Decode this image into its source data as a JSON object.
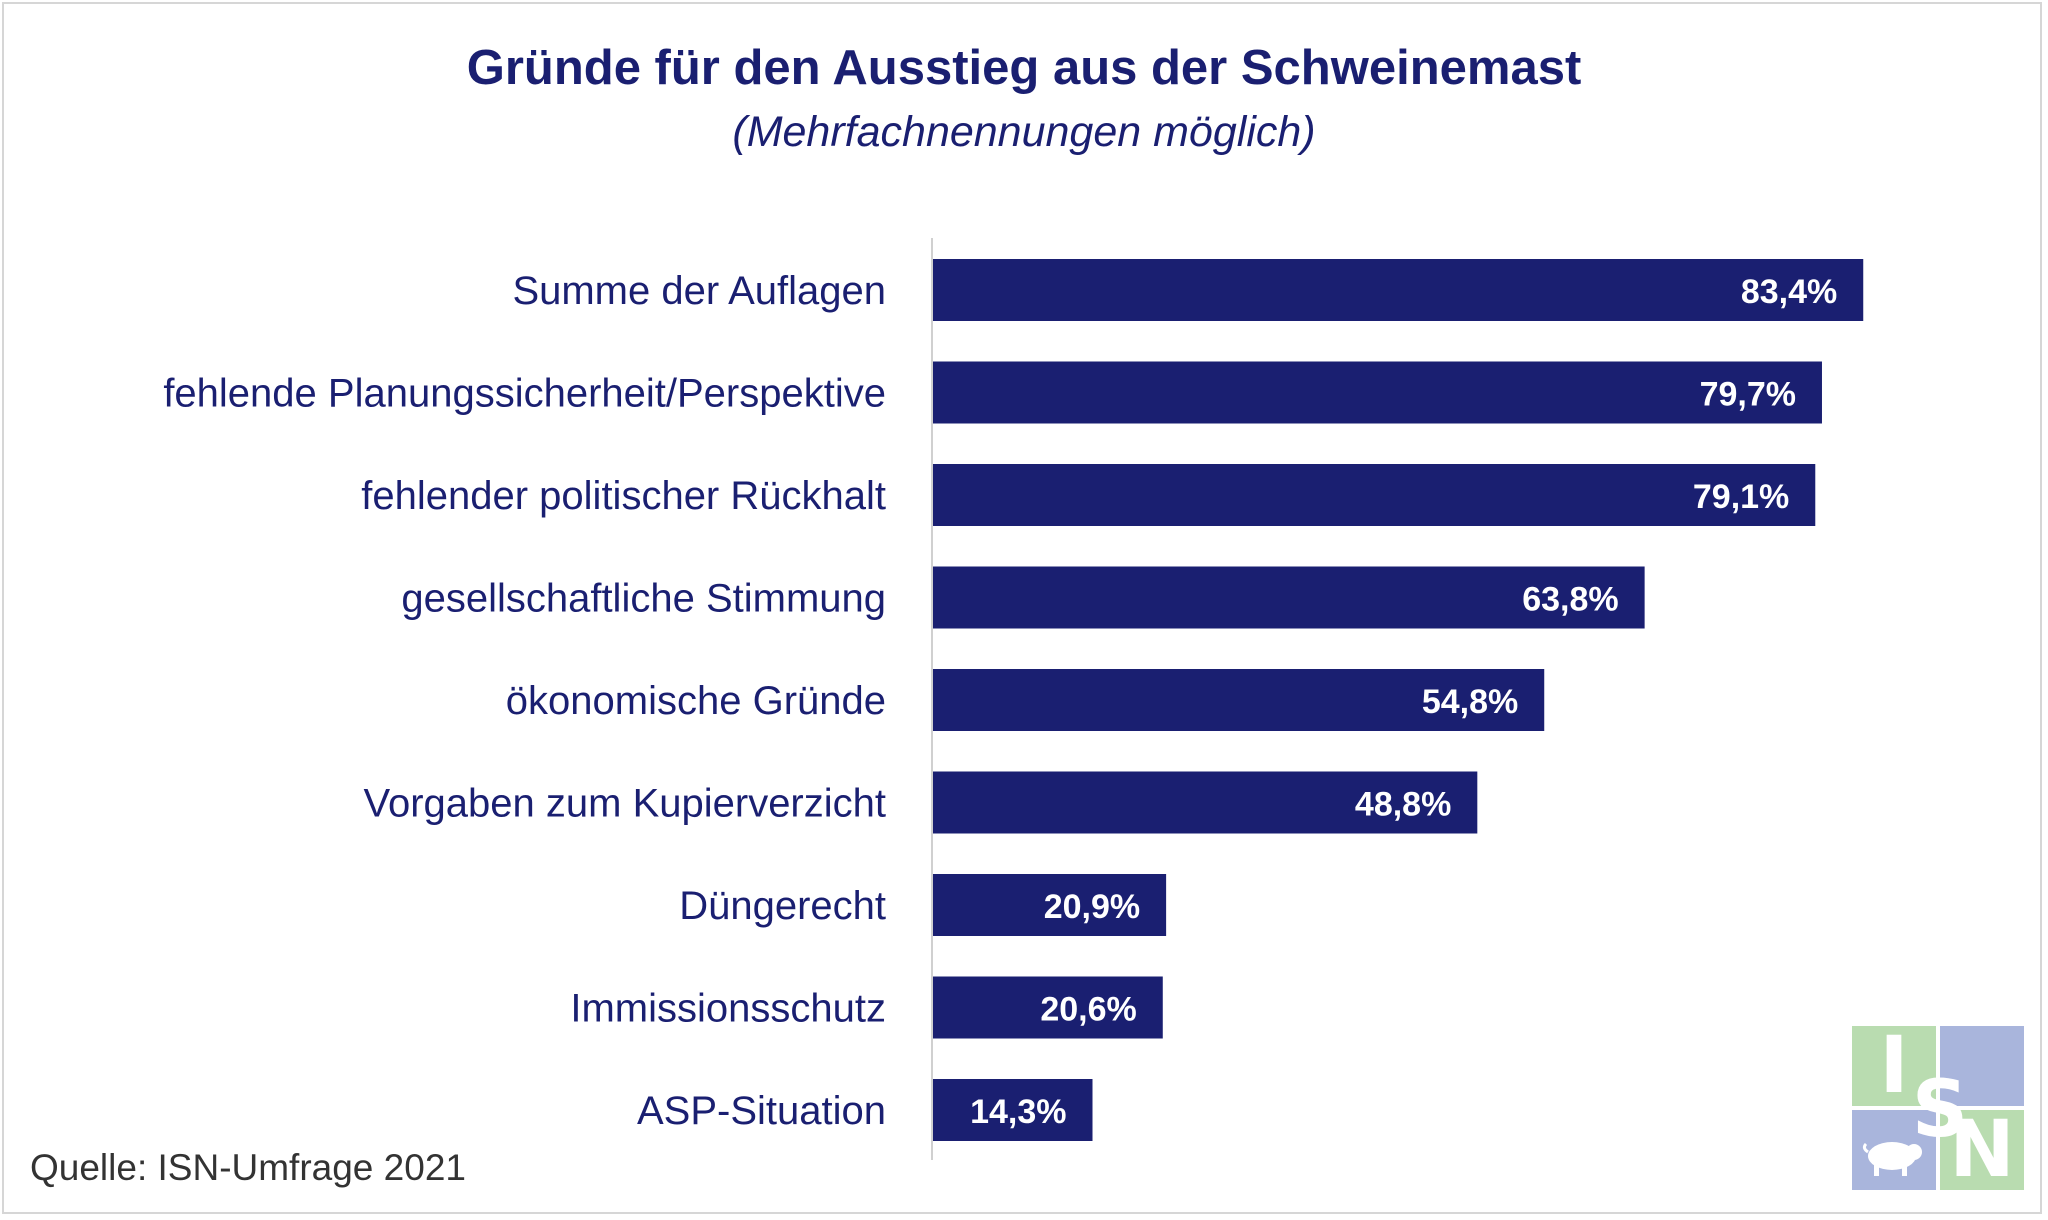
{
  "chart_data": {
    "type": "bar",
    "orientation": "horizontal",
    "title": "Gründe für den Ausstieg aus der Schweinemast",
    "subtitle": "(Mehrfachnennungen möglich)",
    "categories": [
      "Summe der Auflagen",
      "fehlende Planungssicherheit/Perspektive",
      "fehlender politischer Rückhalt",
      "gesellschaftliche Stimmung",
      "ökonomische Gründe",
      "Vorgaben zum Kupierverzicht",
      "Düngerecht",
      "Immissionsschutz",
      "ASP-Situation"
    ],
    "values": [
      83.4,
      79.7,
      79.1,
      63.8,
      54.8,
      48.8,
      20.9,
      20.6,
      14.3
    ],
    "value_labels": [
      "83,4%",
      "79,7%",
      "79,1%",
      "63,8%",
      "54,8%",
      "48,8%",
      "20,9%",
      "20,6%",
      "14,3%"
    ],
    "unit": "%",
    "grid": false,
    "bar_color": "#1a1f71",
    "text_color": "#1a1f71"
  },
  "source": "Quelle: ISN-Umfrage 2021",
  "logo": {
    "letters": [
      "I",
      "S",
      "N"
    ],
    "colors": {
      "green": "#b9dcb0",
      "blue": "#a9b5dc",
      "letter_green": "#7fbf7f",
      "letter_blue": "#8ea0d6"
    },
    "icon": "pig-icon"
  }
}
